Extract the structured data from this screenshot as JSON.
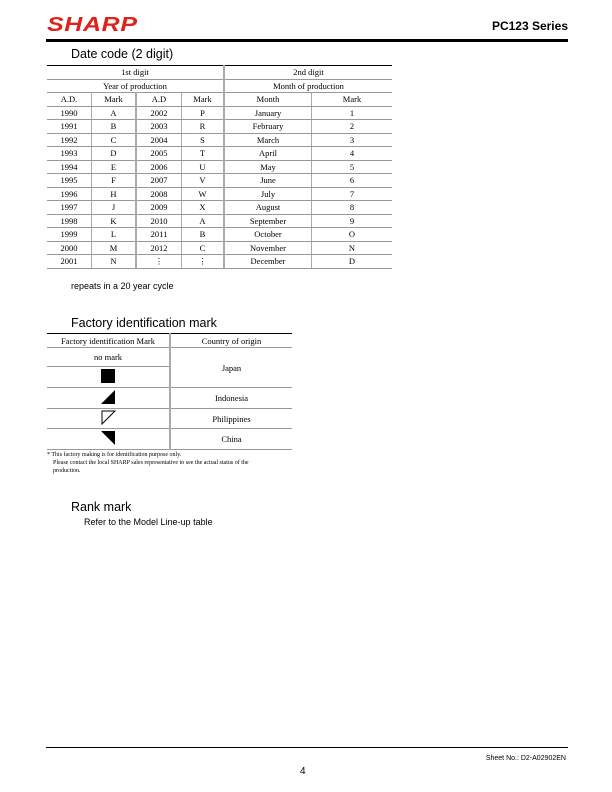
{
  "header": {
    "logo": "SHARP",
    "series": "PC123 Series"
  },
  "date_code": {
    "title": "Date code (2 digit)",
    "first_digit": "1st digit",
    "second_digit": "2nd digit",
    "year_of_production": "Year of production",
    "month_of_production": "Month of production",
    "columns": [
      "A.D.",
      "Mark",
      "A.D",
      "Mark",
      "Month",
      "Mark"
    ],
    "rows": [
      [
        "1990",
        "A",
        "2002",
        "P",
        "January",
        "1"
      ],
      [
        "1991",
        "B",
        "2003",
        "R",
        "February",
        "2"
      ],
      [
        "1992",
        "C",
        "2004",
        "S",
        "March",
        "3"
      ],
      [
        "1993",
        "D",
        "2005",
        "T",
        "April",
        "4"
      ],
      [
        "1994",
        "E",
        "2006",
        "U",
        "May",
        "5"
      ],
      [
        "1995",
        "F",
        "2007",
        "V",
        "June",
        "6"
      ],
      [
        "1996",
        "H",
        "2008",
        "W",
        "July",
        "7"
      ],
      [
        "1997",
        "J",
        "2009",
        "X",
        "August",
        "8"
      ],
      [
        "1998",
        "K",
        "2010",
        "A",
        "September",
        "9"
      ],
      [
        "1999",
        "L",
        "2011",
        "B",
        "October",
        "O"
      ],
      [
        "2000",
        "M",
        "2012",
        "C",
        "November",
        "N"
      ],
      [
        "2001",
        "N",
        "⋮",
        "⋮",
        "December",
        "D"
      ]
    ],
    "note": "repeats in a 20 year cycle"
  },
  "factory": {
    "title": "Factory identification mark",
    "columns": [
      "Factory identification Mark",
      "Country of origin"
    ],
    "no_mark": "no mark",
    "marks": [
      "filled-square-icon",
      "triangle-lower-right-icon",
      "triangle-outline-upper-left-icon",
      "triangle-upper-right-icon"
    ],
    "countries": [
      "Japan",
      "Indonesia",
      "Philippines",
      "China"
    ],
    "footnote": [
      "* This factory making is for identification purpose only.",
      "Please contact the local SHARP sales representative to see the actual status of the",
      "production."
    ]
  },
  "rank": {
    "title": "Rank mark",
    "text": "Refer to the Model Line-up table"
  },
  "footer": {
    "sheet": "Sheet No.: D2-A02902EN",
    "page": "4"
  }
}
